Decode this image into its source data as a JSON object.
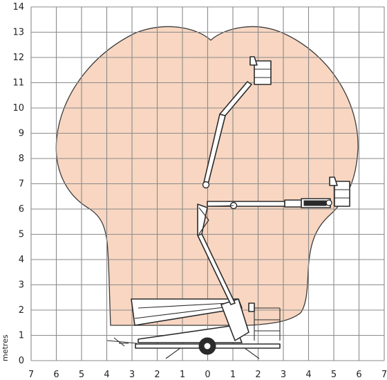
{
  "chart_data": {
    "type": "diagram",
    "title": "",
    "xlabel": "",
    "ylabel": "metres",
    "xlim": [
      -7,
      7
    ],
    "ylim": [
      0,
      14
    ],
    "x_ticks": [
      "7",
      "6",
      "5",
      "4",
      "3",
      "2",
      "1",
      "0",
      "1",
      "2",
      "3",
      "4",
      "5",
      "6",
      "7"
    ],
    "y_ticks": [
      "0",
      "1",
      "2",
      "3",
      "4",
      "5",
      "6",
      "7",
      "8",
      "9",
      "10",
      "11",
      "12",
      "13",
      "14"
    ],
    "working_envelope": {
      "max_height_m": 13.3,
      "max_outreach_m": 6.0,
      "description": "Boom lift working area"
    },
    "platform_positions": [
      {
        "label": "max-height",
        "x_m": 2.0,
        "y_m": 11.4
      },
      {
        "label": "max-outreach",
        "x_m": 5.3,
        "y_m": 6.6
      }
    ]
  },
  "colors": {
    "envelope_fill": "#f8d6c1",
    "grid": "#8a8a8a",
    "machine": "#2a2a2a"
  }
}
